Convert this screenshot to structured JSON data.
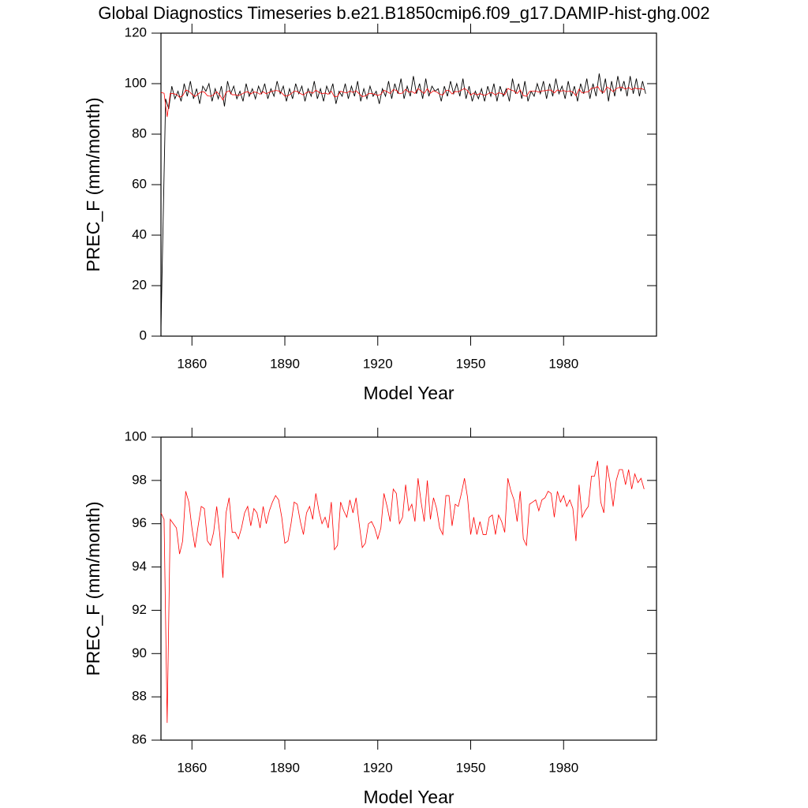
{
  "chart_data": [
    {
      "type": "line",
      "title": "Global Diagnostics Timeseries b.e21.B1850cmip6.f09_g17.DAMIP-hist-ghg.002",
      "xlabel": "Model Year",
      "ylabel": "PREC_F (mm/month)",
      "xlim": [
        1850,
        2010
      ],
      "xticks": [
        1860,
        1890,
        1920,
        1950,
        1980
      ],
      "ylim": [
        0,
        120
      ],
      "yticks": [
        0,
        20,
        40,
        60,
        80,
        100,
        120
      ],
      "series": [
        {
          "color": "#000000",
          "x": [
            1850,
            1851.5,
            1852.5,
            1853.5,
            1854.5,
            1855.5,
            1856.5,
            1857.5,
            1858.5,
            1859.5,
            1860.5,
            1861.5,
            1862.5,
            1863.5,
            1864.5,
            1865.5,
            1866.5,
            1867.5,
            1868.5,
            1869.5,
            1870.5,
            1871.5,
            1872.5,
            1873.5,
            1874.5,
            1875.5,
            1876.5,
            1877.5,
            1878.5,
            1879.5,
            1880.5,
            1881.5,
            1882.5,
            1883.5,
            1884.5,
            1885.5,
            1886.5,
            1887.5,
            1888.5,
            1889.5,
            1890.5,
            1891.5,
            1892.5,
            1893.5,
            1894.5,
            1895.5,
            1896.5,
            1897.5,
            1898.5,
            1899.5,
            1900.5,
            1901.5,
            1902.5,
            1903.5,
            1904.5,
            1905.5,
            1906.5,
            1907.5,
            1908.5,
            1909.5,
            1910.5,
            1911.5,
            1912.5,
            1913.5,
            1914.5,
            1915.5,
            1916.5,
            1917.5,
            1918.5,
            1919.5,
            1920.5,
            1921.5,
            1922.5,
            1923.5,
            1924.5,
            1925.5,
            1926.5,
            1927.5,
            1928.5,
            1929.5,
            1930.5,
            1931.5,
            1932.5,
            1933.5,
            1934.5,
            1935.5,
            1936.5,
            1937.5,
            1938.5,
            1939.5,
            1940.5,
            1941.5,
            1942.5,
            1943.5,
            1944.5,
            1945.5,
            1946.5,
            1947.5,
            1948.5,
            1949.5,
            1950.5,
            1951.5,
            1952.5,
            1953.5,
            1954.5,
            1955.5,
            1956.5,
            1957.5,
            1958.5,
            1959.5,
            1960.5,
            1961.5,
            1962.5,
            1963.5,
            1964.5,
            1965.5,
            1966.5,
            1967.5,
            1968.5,
            1969.5,
            1970.5,
            1971.5,
            1972.5,
            1973.5,
            1974.5,
            1975.5,
            1976.5,
            1977.5,
            1978.5,
            1979.5,
            1980.5,
            1981.5,
            1982.5,
            1983.5,
            1984.5,
            1985.5,
            1986.5,
            1987.5,
            1988.5,
            1989.5,
            1990.5,
            1991.5,
            1992.5,
            1993.5,
            1994.5,
            1995.5,
            1996.5,
            1997.5,
            1998.5,
            1999.5,
            2000.5,
            2001.5,
            2002.5,
            2003.5,
            2004.5,
            2005.5,
            2006.5
          ],
          "values": [
            3,
            94,
            90,
            99,
            94,
            97,
            93,
            100,
            95,
            101,
            94,
            98,
            92,
            99,
            97,
            100,
            93,
            98,
            94,
            99,
            91,
            101,
            96,
            99,
            94,
            97,
            93,
            100,
            95,
            98,
            94,
            99,
            96,
            100,
            94,
            98,
            95,
            101,
            96,
            99,
            93,
            98,
            94,
            100,
            96,
            99,
            93,
            98,
            95,
            101,
            94,
            98,
            93,
            99,
            96,
            100,
            92,
            97,
            95,
            100,
            94,
            99,
            95,
            101,
            93,
            98,
            94,
            99,
            95,
            97,
            92,
            98,
            95,
            101,
            94,
            100,
            96,
            102,
            94,
            99,
            95,
            103,
            96,
            100,
            94,
            102,
            95,
            99,
            97,
            98,
            93,
            99,
            95,
            101,
            96,
            100,
            95,
            102,
            94,
            99,
            93,
            97,
            94,
            98,
            93,
            99,
            95,
            100,
            93,
            99,
            95,
            98,
            93,
            102,
            96,
            100,
            94,
            101,
            93,
            97,
            95,
            100,
            96,
            101,
            94,
            100,
            95,
            102,
            96,
            99,
            94,
            101,
            95,
            99,
            93,
            100,
            96,
            102,
            94,
            100,
            95,
            104,
            96,
            102,
            93,
            101,
            95,
            103,
            97,
            101,
            95,
            103,
            96,
            102,
            95,
            101,
            96
          ]
        },
        {
          "color": "#ff0000",
          "x": [
            1850,
            1851,
            1852,
            1853,
            1854,
            1855,
            1856,
            1857,
            1858,
            1859,
            1860,
            1861,
            1862,
            1863,
            1864,
            1865,
            1866,
            1867,
            1868,
            1869,
            1870,
            1871,
            1872,
            1873,
            1874,
            1875,
            1876,
            1877,
            1878,
            1879,
            1880,
            1881,
            1882,
            1883,
            1884,
            1885,
            1886,
            1887,
            1888,
            1889,
            1890,
            1891,
            1892,
            1893,
            1894,
            1895,
            1896,
            1897,
            1898,
            1899,
            1900,
            1901,
            1902,
            1903,
            1904,
            1905,
            1906,
            1907,
            1908,
            1909,
            1910,
            1911,
            1912,
            1913,
            1914,
            1915,
            1916,
            1917,
            1918,
            1919,
            1920,
            1921,
            1922,
            1923,
            1924,
            1925,
            1926,
            1927,
            1928,
            1929,
            1930,
            1931,
            1932,
            1933,
            1934,
            1935,
            1936,
            1937,
            1938,
            1939,
            1940,
            1941,
            1942,
            1943,
            1944,
            1945,
            1946,
            1947,
            1948,
            1949,
            1950,
            1951,
            1952,
            1953,
            1954,
            1955,
            1956,
            1957,
            1958,
            1959,
            1960,
            1961,
            1962,
            1963,
            1964,
            1965,
            1966,
            1967,
            1968,
            1969,
            1970,
            1971,
            1972,
            1973,
            1974,
            1975,
            1976,
            1977,
            1978,
            1979,
            1980,
            1981,
            1982,
            1983,
            1984,
            1985,
            1986,
            1987,
            1988,
            1989,
            1990,
            1991,
            1992,
            1993,
            1994,
            1995,
            1996,
            1997,
            1998,
            1999,
            2000,
            2001,
            2002,
            2003,
            2004,
            2005,
            2006
          ],
          "values": [
            96.5,
            96.2,
            86.8,
            96.2,
            96.0,
            95.8,
            94.6,
            95.2,
            97.5,
            97.0,
            95.8,
            94.9,
            95.9,
            96.8,
            96.7,
            95.2,
            95.0,
            95.6,
            96.8,
            95.5,
            93.5,
            96.5,
            97.2,
            95.6,
            95.6,
            95.3,
            95.8,
            96.5,
            96.8,
            95.9,
            96.7,
            96.5,
            95.8,
            96.8,
            96.0,
            96.6,
            97.0,
            97.3,
            97.1,
            96.3,
            95.1,
            95.2,
            96.0,
            97.0,
            96.9,
            96.1,
            95.5,
            96.5,
            96.8,
            96.2,
            97.4,
            96.6,
            96.0,
            96.3,
            95.8,
            97.0,
            94.8,
            95.0,
            97.0,
            96.6,
            96.3,
            97.1,
            96.5,
            97.2,
            96.0,
            94.9,
            95.1,
            96.0,
            96.1,
            95.8,
            95.3,
            95.8,
            97.4,
            96.8,
            96.1,
            97.6,
            97.4,
            96.0,
            96.3,
            97.8,
            96.6,
            96.9,
            96.1,
            98.1,
            97.0,
            96.1,
            98.0,
            96.2,
            97.2,
            96.7,
            95.8,
            95.5,
            97.3,
            97.3,
            95.9,
            96.9,
            96.8,
            97.4,
            98.1,
            97.2,
            95.5,
            96.3,
            95.5,
            96.1,
            95.5,
            95.5,
            96.3,
            96.4,
            95.5,
            96.4,
            96.1,
            95.6,
            98.1,
            97.5,
            97.1,
            96.1,
            97.5,
            95.3,
            95.0,
            96.9,
            97.0,
            97.1,
            96.6,
            97.1,
            97.2,
            97.5,
            97.4,
            96.3,
            97.5,
            97.0,
            97.3,
            96.8,
            97.1,
            96.7,
            95.2,
            97.8,
            96.3,
            96.6,
            96.8,
            98.2,
            98.2,
            98.9,
            97.0,
            96.5,
            98.7,
            97.9,
            96.8,
            98.0,
            98.5,
            98.5,
            97.8,
            98.5,
            97.6,
            98.3,
            97.9,
            98.1,
            97.6
          ]
        }
      ]
    },
    {
      "type": "line",
      "xlabel": "Model Year",
      "ylabel": "PREC_F (mm/month)",
      "xlim": [
        1850,
        2010
      ],
      "xticks": [
        1860,
        1890,
        1920,
        1950,
        1980
      ],
      "ylim": [
        86,
        100
      ],
      "yticks": [
        86,
        88,
        90,
        92,
        94,
        96,
        98,
        100
      ],
      "series": [
        {
          "color": "#ff0000",
          "x": [
            1850,
            1851,
            1852,
            1853,
            1854,
            1855,
            1856,
            1857,
            1858,
            1859,
            1860,
            1861,
            1862,
            1863,
            1864,
            1865,
            1866,
            1867,
            1868,
            1869,
            1870,
            1871,
            1872,
            1873,
            1874,
            1875,
            1876,
            1877,
            1878,
            1879,
            1880,
            1881,
            1882,
            1883,
            1884,
            1885,
            1886,
            1887,
            1888,
            1889,
            1890,
            1891,
            1892,
            1893,
            1894,
            1895,
            1896,
            1897,
            1898,
            1899,
            1900,
            1901,
            1902,
            1903,
            1904,
            1905,
            1906,
            1907,
            1908,
            1909,
            1910,
            1911,
            1912,
            1913,
            1914,
            1915,
            1916,
            1917,
            1918,
            1919,
            1920,
            1921,
            1922,
            1923,
            1924,
            1925,
            1926,
            1927,
            1928,
            1929,
            1930,
            1931,
            1932,
            1933,
            1934,
            1935,
            1936,
            1937,
            1938,
            1939,
            1940,
            1941,
            1942,
            1943,
            1944,
            1945,
            1946,
            1947,
            1948,
            1949,
            1950,
            1951,
            1952,
            1953,
            1954,
            1955,
            1956,
            1957,
            1958,
            1959,
            1960,
            1961,
            1962,
            1963,
            1964,
            1965,
            1966,
            1967,
            1968,
            1969,
            1970,
            1971,
            1972,
            1973,
            1974,
            1975,
            1976,
            1977,
            1978,
            1979,
            1980,
            1981,
            1982,
            1983,
            1984,
            1985,
            1986,
            1987,
            1988,
            1989,
            1990,
            1991,
            1992,
            1993,
            1994,
            1995,
            1996,
            1997,
            1998,
            1999,
            2000,
            2001,
            2002,
            2003,
            2004,
            2005,
            2006
          ],
          "values": [
            96.5,
            96.2,
            86.8,
            96.2,
            96.0,
            95.8,
            94.6,
            95.2,
            97.5,
            97.0,
            95.8,
            94.9,
            95.9,
            96.8,
            96.7,
            95.2,
            95.0,
            95.6,
            96.8,
            95.5,
            93.5,
            96.5,
            97.2,
            95.6,
            95.6,
            95.3,
            95.8,
            96.5,
            96.8,
            95.9,
            96.7,
            96.5,
            95.8,
            96.8,
            96.0,
            96.6,
            97.0,
            97.3,
            97.1,
            96.3,
            95.1,
            95.2,
            96.0,
            97.0,
            96.9,
            96.1,
            95.5,
            96.5,
            96.8,
            96.2,
            97.4,
            96.6,
            96.0,
            96.3,
            95.8,
            97.0,
            94.8,
            95.0,
            97.0,
            96.6,
            96.3,
            97.1,
            96.5,
            97.2,
            96.0,
            94.9,
            95.1,
            96.0,
            96.1,
            95.8,
            95.3,
            95.8,
            97.4,
            96.8,
            96.1,
            97.6,
            97.4,
            96.0,
            96.3,
            97.8,
            96.6,
            96.9,
            96.1,
            98.1,
            97.0,
            96.1,
            98.0,
            96.2,
            97.2,
            96.7,
            95.8,
            95.5,
            97.3,
            97.3,
            95.9,
            96.9,
            96.8,
            97.4,
            98.1,
            97.2,
            95.5,
            96.3,
            95.5,
            96.1,
            95.5,
            95.5,
            96.3,
            96.4,
            95.5,
            96.4,
            96.1,
            95.6,
            98.1,
            97.5,
            97.1,
            96.1,
            97.5,
            95.3,
            95.0,
            96.9,
            97.0,
            97.1,
            96.6,
            97.1,
            97.2,
            97.5,
            97.4,
            96.3,
            97.5,
            97.0,
            97.3,
            96.8,
            97.1,
            96.7,
            95.2,
            97.8,
            96.3,
            96.6,
            96.8,
            98.2,
            98.2,
            98.9,
            97.0,
            96.5,
            98.7,
            97.9,
            96.8,
            98.0,
            98.5,
            98.5,
            97.8,
            98.5,
            97.6,
            98.3,
            97.9,
            98.1,
            97.6
          ]
        }
      ]
    }
  ]
}
